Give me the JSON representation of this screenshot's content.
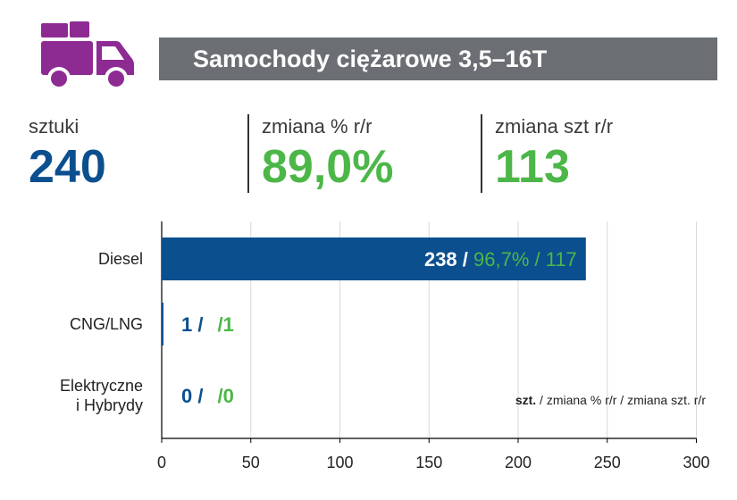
{
  "title": "Samochody ciężarowe 3,5–16T",
  "icon": "truck-icon",
  "colors": {
    "blue": "#0b4f8e",
    "green": "#4cb748",
    "purple": "#8e2b93",
    "title_bg": "#6b6f73",
    "grid": "#d9d9d9"
  },
  "kpis": [
    {
      "label": "sztuki",
      "value": "240",
      "color": "#0b4f8e"
    },
    {
      "label": "zmiana % r/r",
      "value": "89,0%",
      "color": "#4cb748"
    },
    {
      "label": "zmiana szt r/r",
      "value": "113",
      "color": "#4cb748"
    }
  ],
  "chart_data": {
    "type": "bar",
    "orientation": "horizontal",
    "categories": [
      "Diesel",
      "CNG/LNG",
      "Elektryczne i Hybrydy"
    ],
    "values": [
      238,
      1,
      0
    ],
    "bar_labels": [
      {
        "units": "238",
        "sep1": " / ",
        "pct": "96,7%",
        "sep2": " / ",
        "diff": "117"
      },
      {
        "units": "1",
        "sep1": " / ",
        "pct": "",
        "sep2": " /",
        "diff": "1"
      },
      {
        "units": "0",
        "sep1": " / ",
        "pct": "",
        "sep2": " /",
        "diff": "0"
      }
    ],
    "xlim": [
      0,
      300
    ],
    "xticks": [
      "0",
      "50",
      "100",
      "150",
      "200",
      "250",
      "300"
    ],
    "grid": true,
    "legend_note": {
      "bold": "szt.",
      "rest": " / zmiana % r/r / zmiana szt. r/r"
    }
  }
}
